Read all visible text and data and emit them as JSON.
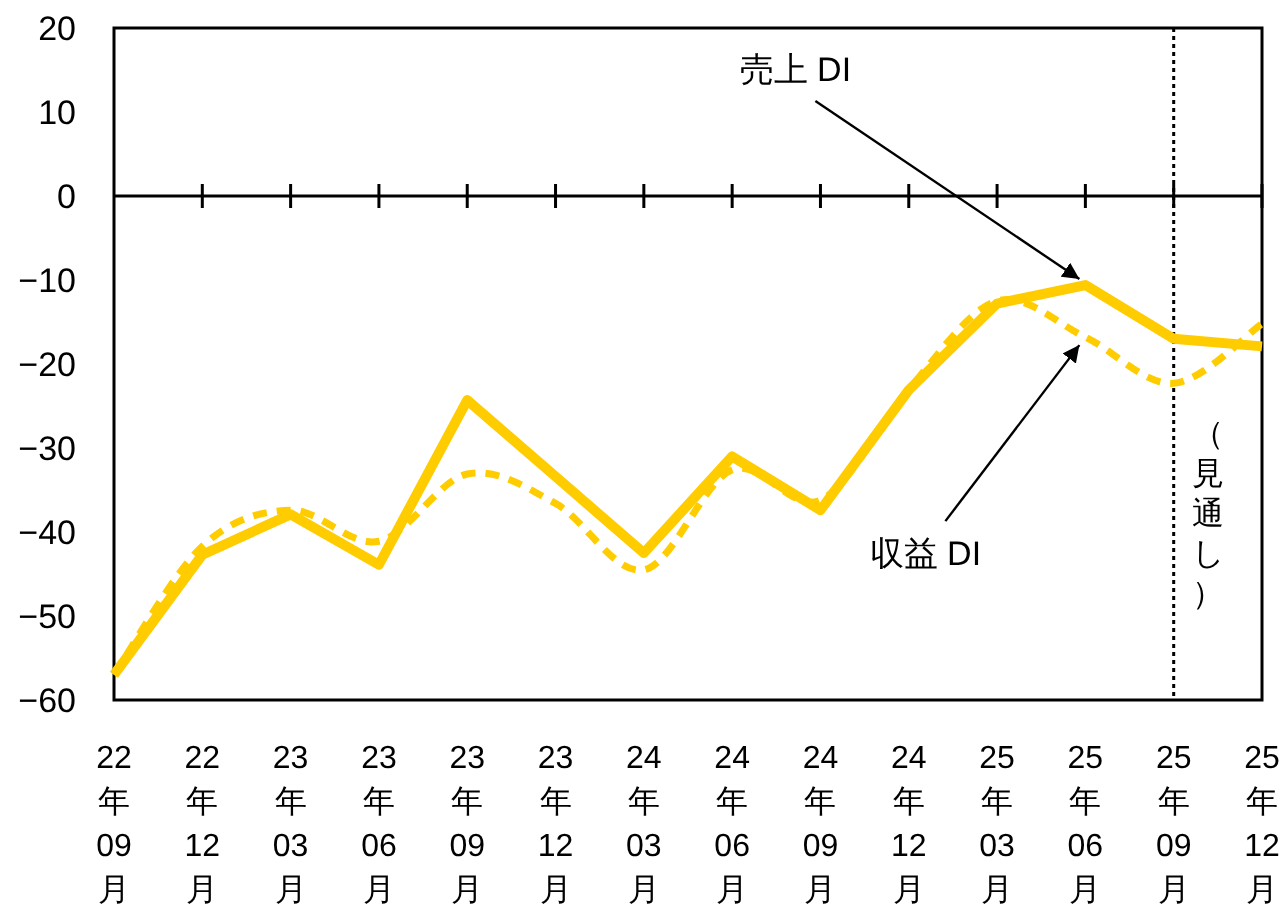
{
  "chart_data": {
    "type": "line",
    "categories": [
      "22年09月",
      "22年12月",
      "23年03月",
      "23年06月",
      "23年09月",
      "23年12月",
      "24年03月",
      "24年06月",
      "24年09月",
      "24年12月",
      "25年03月",
      "25年06月",
      "25年09月",
      "25年12月"
    ],
    "series": [
      {
        "color": "#ffcc00",
        "line_style": "solid",
        "values": [
          -57,
          -42.7,
          -37.9,
          -43.9,
          -24.3,
          -33.4,
          -42.5,
          -31,
          -37.4,
          -23.1,
          -12.8,
          -10.6,
          -17,
          -17.9
        ]
      },
      {
        "color": "#ffcc00",
        "line_style": "dashed",
        "values": [
          -57,
          -41.7,
          -37.4,
          -41.1,
          -33.1,
          -36.6,
          -44.5,
          -32.6,
          -36.2,
          -23,
          -12.5,
          -16.8,
          -22.3,
          -15.2
        ]
      }
    ],
    "ylim": [
      -60,
      20
    ],
    "yticks": [
      20,
      10,
      0,
      -10,
      -20,
      -30,
      -40,
      -50,
      -60
    ],
    "grid": false,
    "ref_lines": [
      {
        "axis": "x",
        "value": "25年09月",
        "label": "（見通し）",
        "line_style": "dotted",
        "color": "#000000"
      }
    ],
    "annotations": [
      {
        "text": "売上 DI",
        "x": "25年06月",
        "y": -10.6
      },
      {
        "text": "収益 DI",
        "x": "25年06月",
        "y": -16.8
      }
    ]
  }
}
